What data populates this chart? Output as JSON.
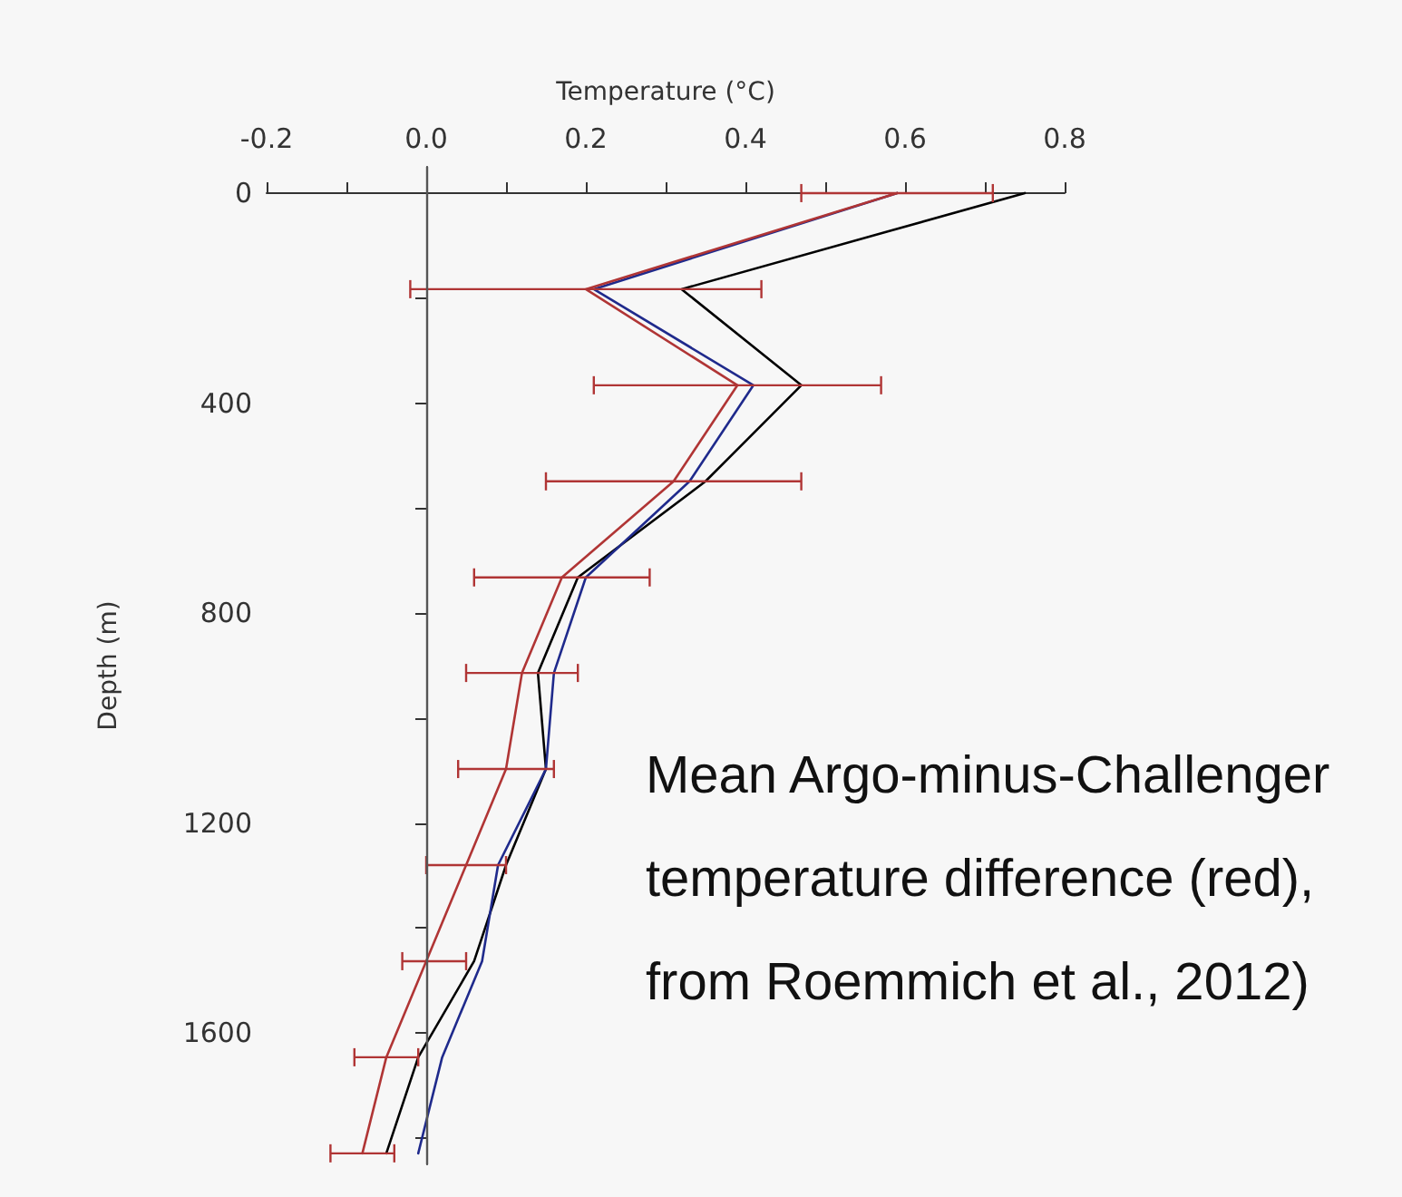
{
  "chart_data": {
    "type": "line",
    "xlabel": "Temperature (°C)",
    "ylabel": "Depth (m)",
    "xlim": [
      -0.2,
      0.8
    ],
    "xticks": [
      -0.2,
      {
        "value": -0.1,
        "label": null
      },
      "0.0",
      {
        "value": 0.1,
        "label": null
      },
      0.2,
      {
        "value": 0.3,
        "label": null
      },
      0.4,
      {
        "value": 0.5,
        "label": null
      },
      0.6,
      {
        "value": 0.7,
        "label": null
      },
      0.8
    ],
    "ylim": [
      1850,
      -50
    ],
    "yticks": [
      0,
      {
        "value": 200,
        "label": null
      },
      400,
      {
        "value": 600,
        "label": null
      },
      800,
      {
        "value": 1000,
        "label": null
      },
      1200,
      {
        "value": 1400,
        "label": null
      },
      1600,
      {
        "value": 1800,
        "label": null
      }
    ],
    "grid": false,
    "marker": "none",
    "line_style": "solid",
    "ref_lines": [
      {
        "axis": "x",
        "value": 0,
        "color": "#555555"
      }
    ],
    "series": [
      {
        "color": "#000000",
        "x": [
          0.75,
          0.32,
          0.47,
          0.35,
          0.19,
          0.14,
          0.15,
          0.1,
          0.06,
          -0.01,
          -0.05
        ],
        "values": [
          0,
          183,
          366,
          549,
          732,
          914,
          1097,
          1280,
          1463,
          1646,
          1829
        ]
      },
      {
        "color": "#1f2a8c",
        "x": [
          0.59,
          0.21,
          0.41,
          0.33,
          0.2,
          0.16,
          0.15,
          0.09,
          0.07,
          0.02,
          -0.01
        ],
        "values": [
          0,
          183,
          366,
          549,
          732,
          914,
          1097,
          1280,
          1463,
          1646,
          1829
        ]
      },
      {
        "color": "#b03535",
        "x": [
          0.59,
          0.2,
          0.39,
          0.31,
          0.17,
          0.12,
          0.1,
          0.05,
          0.0,
          -0.05,
          -0.08
        ],
        "values": [
          0,
          183,
          366,
          549,
          732,
          914,
          1097,
          1280,
          1463,
          1646,
          1829
        ],
        "xerrors": [
          [
            0.47,
            0.71
          ],
          [
            -0.02,
            0.42
          ],
          [
            0.21,
            0.57
          ],
          [
            0.15,
            0.47
          ],
          [
            0.06,
            0.28
          ],
          [
            0.05,
            0.19
          ],
          [
            0.04,
            0.16
          ],
          [
            0.0,
            0.1
          ],
          [
            -0.03,
            0.05
          ],
          [
            -0.09,
            -0.01
          ],
          [
            -0.12,
            -0.04
          ]
        ]
      }
    ],
    "annotations": [
      "Mean Argo-minus-Challenger temperature difference (red), from Roemmich et al., 2012)"
    ]
  }
}
